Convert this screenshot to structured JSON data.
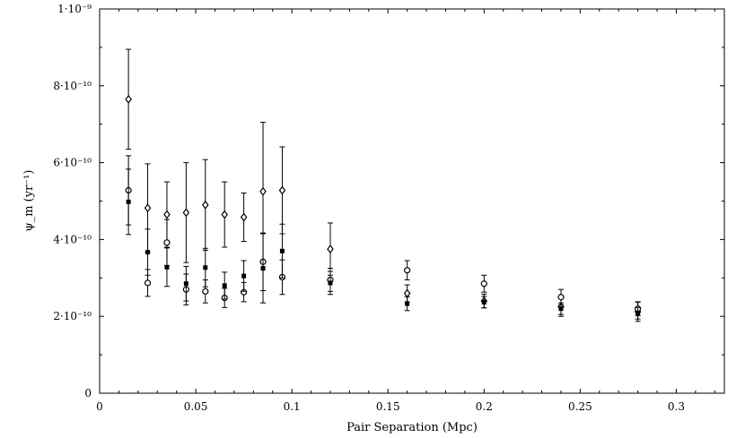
{
  "chart_data": {
    "type": "scatter",
    "xlabel": "Pair Separation (Mpc)",
    "ylabel": "ψ_m (yr⁻¹)",
    "xlim": [
      0,
      0.325
    ],
    "ylim": [
      0,
      1e-09
    ],
    "xticks": [
      0,
      0.05,
      0.1,
      0.15,
      0.2,
      0.25,
      0.3
    ],
    "xtick_labels": [
      "0",
      "0.05",
      "0.1",
      "0.15",
      "0.2",
      "0.25",
      "0.3"
    ],
    "yticks": [
      0,
      2e-10,
      4e-10,
      6e-10,
      8e-10,
      1e-09
    ],
    "ytick_labels": [
      "0",
      "2·10⁻¹⁰",
      "4·10⁻¹⁰",
      "6·10⁻¹⁰",
      "8·10⁻¹⁰",
      "1·10⁻⁹"
    ],
    "grid": false,
    "legend": "none",
    "series": [
      {
        "marker": "diamond-open",
        "x": [
          0.015,
          0.025,
          0.035,
          0.045,
          0.055,
          0.065,
          0.075,
          0.085,
          0.095,
          0.12,
          0.16,
          0.2,
          0.24,
          0.28
        ],
        "y": [
          7.65e-10,
          4.82e-10,
          4.65e-10,
          4.7e-10,
          4.9e-10,
          4.65e-10,
          4.58e-10,
          5.25e-10,
          5.28e-10,
          3.75e-10,
          2.6e-10,
          2.4e-10,
          2.25e-10,
          2.12e-10
        ],
        "yerr": [
          1.3e-10,
          1.15e-10,
          8.5e-11,
          1.3e-10,
          1.18e-10,
          8.5e-11,
          6.3e-11,
          1.8e-10,
          1.13e-10,
          6.8e-11,
          2.2e-11,
          1.8e-11,
          2.5e-11,
          2.5e-11
        ]
      },
      {
        "marker": "circle-open",
        "x": [
          0.015,
          0.025,
          0.035,
          0.045,
          0.055,
          0.065,
          0.075,
          0.085,
          0.095,
          0.12,
          0.16,
          0.2,
          0.24,
          0.28
        ],
        "y": [
          5.28e-10,
          2.87e-10,
          3.92e-10,
          2.7e-10,
          2.65e-10,
          2.48e-10,
          2.63e-10,
          3.42e-10,
          3.02e-10,
          2.95e-10,
          3.2e-10,
          2.85e-10,
          2.5e-10,
          2.2e-10
        ],
        "yerr": [
          9e-11,
          3.5e-11,
          6e-11,
          4e-11,
          3e-11,
          2.5e-11,
          2.5e-11,
          7.5e-11,
          4.5e-11,
          3e-11,
          2.5e-11,
          2.2e-11,
          2e-11,
          1.8e-11
        ]
      },
      {
        "marker": "square-filled",
        "x": [
          0.015,
          0.025,
          0.035,
          0.045,
          0.055,
          0.065,
          0.075,
          0.085,
          0.095,
          0.12,
          0.16,
          0.2,
          0.24,
          0.28
        ],
        "y": [
          4.98e-10,
          3.67e-10,
          3.28e-10,
          2.85e-10,
          3.27e-10,
          2.8e-10,
          3.05e-10,
          3.25e-10,
          3.7e-10,
          2.87e-10,
          2.33e-10,
          2.37e-10,
          2.2e-10,
          2.08e-10
        ],
        "yerr": [
          8.5e-11,
          6e-11,
          5e-11,
          4.5e-11,
          5e-11,
          3.5e-11,
          4e-11,
          9e-11,
          7e-11,
          3e-11,
          1.8e-11,
          1.5e-11,
          1.5e-11,
          1.5e-11
        ]
      }
    ]
  }
}
